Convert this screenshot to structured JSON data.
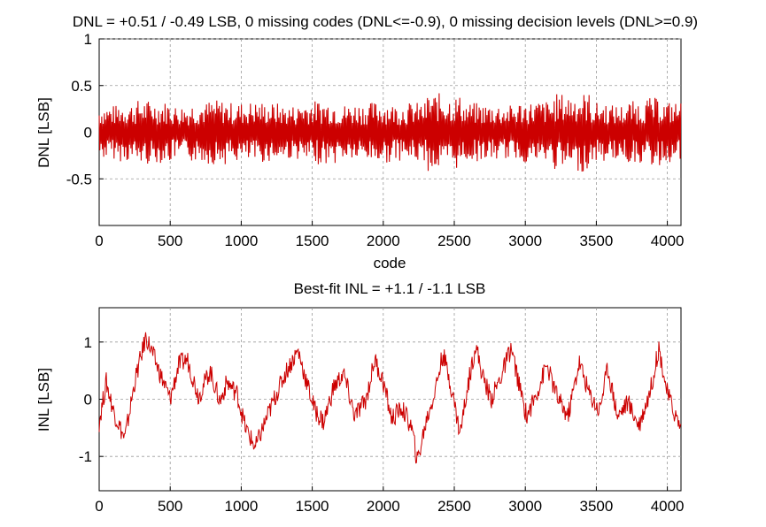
{
  "chart_data": [
    {
      "type": "line",
      "title": "DNL = +0.51 / -0.49 LSB,  0 missing codes (DNL<=-0.9), 0 missing decision levels (DNL>=0.9)",
      "xlabel": "code",
      "ylabel": "DNL [LSB]",
      "xlim": [
        0,
        4096
      ],
      "ylim": [
        -1,
        1
      ],
      "xticks": [
        0,
        500,
        1000,
        1500,
        2000,
        2500,
        3000,
        3500,
        4000
      ],
      "yticks": [
        -0.5,
        0,
        0.5,
        1
      ],
      "grid": true,
      "color": "#cc0000",
      "series": [
        {
          "x": [
            0,
            128,
            256,
            384,
            512,
            640,
            768,
            896,
            1024,
            1152,
            1280,
            1408,
            1536,
            1664,
            1792,
            1920,
            2048,
            2176,
            2304,
            2432,
            2560,
            2688,
            2816,
            2944,
            3072,
            3200,
            3328,
            3456,
            3584,
            3712,
            3840,
            3968,
            4095
          ],
          "y": [
            0.28,
            -0.3,
            0.33,
            -0.36,
            0.3,
            -0.28,
            0.36,
            -0.33,
            0.31,
            -0.35,
            0.28,
            -0.3,
            0.38,
            -0.31,
            0.29,
            -0.34,
            0.32,
            -0.29,
            0.35,
            -0.49,
            0.3,
            -0.33,
            0.28,
            -0.3,
            0.36,
            -0.32,
            0.51,
            -0.34,
            0.3,
            -0.29,
            0.38,
            -0.36,
            0.3
          ]
        }
      ]
    },
    {
      "type": "line",
      "title": "Best-fit INL = +1.1 / -1.1 LSB",
      "xlabel": "",
      "ylabel": "INL [LSB]",
      "xlim": [
        0,
        4096
      ],
      "ylim": [
        -1.6,
        1.6
      ],
      "xticks": [
        0,
        500,
        1000,
        1500,
        2000,
        2500,
        3000,
        3500,
        4000
      ],
      "yticks": [
        -1,
        0,
        1
      ],
      "grid": true,
      "color": "#cc0000",
      "series": [
        {
          "x": [
            0,
            50,
            100,
            180,
            250,
            330,
            420,
            500,
            560,
            620,
            700,
            780,
            850,
            900,
            970,
            1030,
            1100,
            1160,
            1240,
            1320,
            1400,
            1460,
            1520,
            1580,
            1650,
            1720,
            1800,
            1880,
            1940,
            2000,
            2060,
            2130,
            2200,
            2240,
            2300,
            2360,
            2420,
            2480,
            2540,
            2600,
            2650,
            2700,
            2760,
            2830,
            2900,
            2960,
            3010,
            3080,
            3150,
            3230,
            3300,
            3380,
            3450,
            3520,
            3580,
            3650,
            3720,
            3800,
            3880,
            3940,
            4000,
            4060,
            4095
          ],
          "y": [
            -0.4,
            0.3,
            -0.2,
            -0.7,
            0.3,
            1.1,
            0.5,
            0.0,
            0.6,
            0.7,
            0.05,
            0.5,
            -0.05,
            0.3,
            0.1,
            -0.5,
            -0.85,
            -0.45,
            0.05,
            0.5,
            0.85,
            0.3,
            -0.2,
            -0.4,
            0.2,
            0.45,
            -0.3,
            0.0,
            0.7,
            0.3,
            -0.35,
            -0.15,
            -0.5,
            -1.1,
            -0.4,
            0.1,
            0.8,
            0.2,
            -0.6,
            0.3,
            0.95,
            0.4,
            0.0,
            0.4,
            0.9,
            0.2,
            -0.3,
            0.1,
            0.6,
            0.0,
            -0.3,
            0.65,
            0.1,
            -0.2,
            0.55,
            -0.3,
            -0.05,
            -0.45,
            0.15,
            0.9,
            0.1,
            -0.3,
            -0.5
          ]
        }
      ]
    }
  ]
}
